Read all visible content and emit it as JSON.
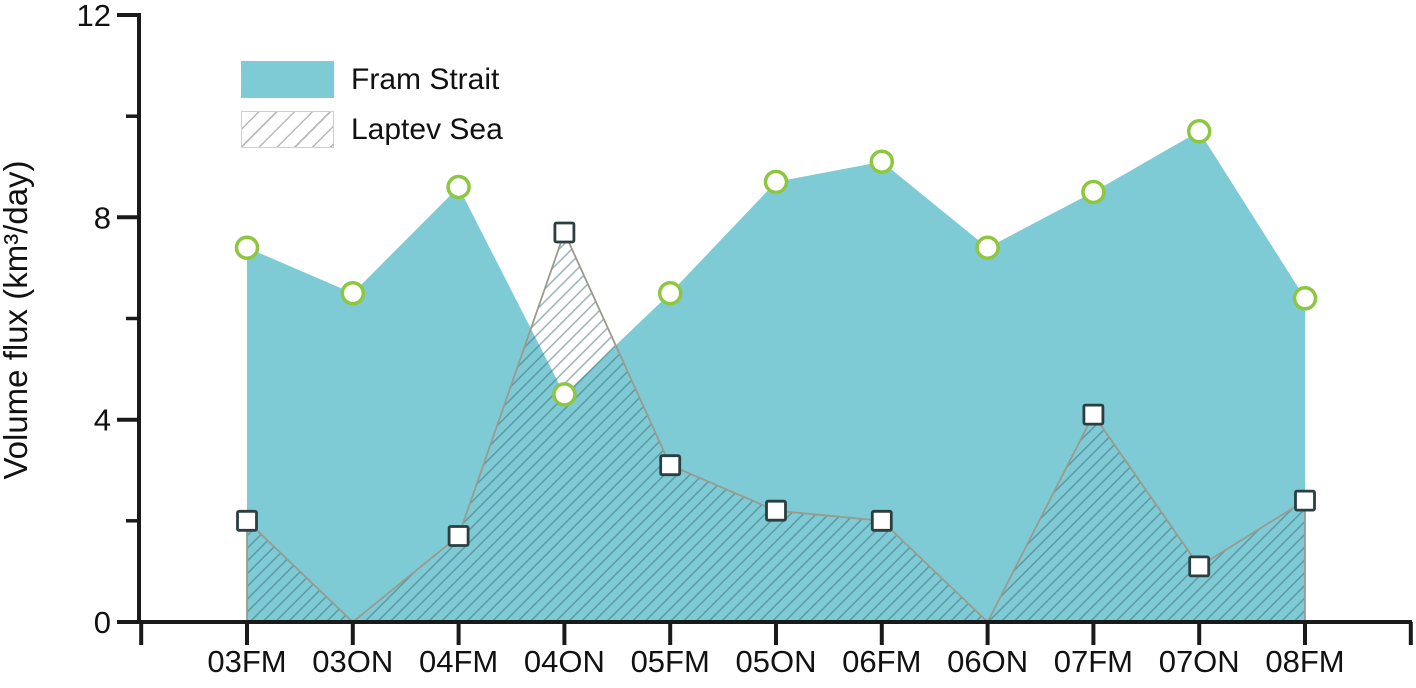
{
  "figure": {
    "ylabel": "Volume flux (km³/day)"
  },
  "legend": {
    "items": [
      {
        "label": "Fram Strait",
        "swatch": "solid-teal-fill"
      },
      {
        "label": "Laptev Sea",
        "swatch": "gray-diagonal-hatch"
      }
    ]
  },
  "chart_data": {
    "type": "area",
    "categories": [
      "03FM",
      "03ON",
      "04FM",
      "04ON",
      "05FM",
      "05ON",
      "06FM",
      "06ON",
      "07FM",
      "07ON",
      "08FM"
    ],
    "series": [
      {
        "name": "Fram Strait",
        "style": "solid-fill",
        "marker": "circle",
        "values": [
          7.4,
          6.5,
          8.6,
          4.5,
          6.5,
          8.7,
          9.1,
          7.4,
          8.5,
          9.7,
          6.4
        ]
      },
      {
        "name": "Laptev Sea",
        "style": "hatched",
        "marker": "square",
        "values": [
          2.0,
          0,
          1.7,
          7.7,
          3.1,
          2.2,
          2.0,
          0,
          4.1,
          1.1,
          2.4
        ]
      }
    ],
    "title": "",
    "xlabel": "",
    "ylabel": "Volume flux (km³/day)",
    "ylim": [
      0,
      12
    ],
    "yticks_major": [
      0,
      4,
      8,
      12
    ],
    "yticks_minor": [
      2,
      6,
      10
    ],
    "grid": false,
    "legend_position": "top-left"
  },
  "colors": {
    "fram_fill": "#7ECBD6",
    "circle_stroke": "#8DC63F",
    "square_stroke": "#2B3F42",
    "laptev_outline": "#9A9A8E",
    "hatch_line": "#3E686E",
    "legend_hatch": "#B9B9B9",
    "axis": "#1A1A1A",
    "text": "#111111"
  }
}
